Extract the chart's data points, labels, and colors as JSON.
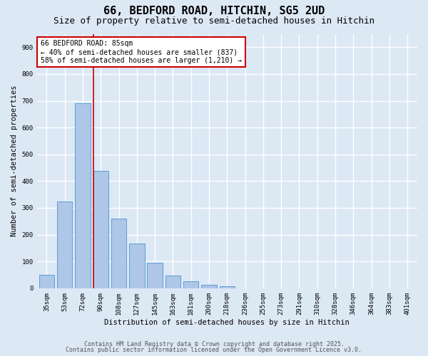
{
  "title1": "66, BEDFORD ROAD, HITCHIN, SG5 2UD",
  "title2": "Size of property relative to semi-detached houses in Hitchin",
  "xlabel": "Distribution of semi-detached houses by size in Hitchin",
  "ylabel": "Number of semi-detached properties",
  "categories": [
    "35sqm",
    "53sqm",
    "72sqm",
    "90sqm",
    "108sqm",
    "127sqm",
    "145sqm",
    "163sqm",
    "181sqm",
    "200sqm",
    "218sqm",
    "236sqm",
    "255sqm",
    "273sqm",
    "291sqm",
    "310sqm",
    "328sqm",
    "346sqm",
    "364sqm",
    "383sqm",
    "401sqm"
  ],
  "values": [
    50,
    323,
    690,
    437,
    260,
    168,
    95,
    47,
    26,
    12,
    8,
    0,
    0,
    0,
    0,
    0,
    0,
    0,
    0,
    0,
    0
  ],
  "bar_color": "#aec6e8",
  "bar_edge_color": "#5a9fd4",
  "background_color": "#dde8f5",
  "grid_color": "#ffffff",
  "vline_color": "#cc0000",
  "annotation_title": "66 BEDFORD ROAD: 85sqm",
  "annotation_line1": "← 40% of semi-detached houses are smaller (837)",
  "annotation_line2": "58% of semi-detached houses are larger (1,210) →",
  "annotation_box_color": "#ffffff",
  "annotation_box_edge_color": "#cc0000",
  "ylim": [
    0,
    950
  ],
  "yticks": [
    0,
    100,
    200,
    300,
    400,
    500,
    600,
    700,
    800,
    900
  ],
  "footnote1": "Contains HM Land Registry data © Crown copyright and database right 2025.",
  "footnote2": "Contains public sector information licensed under the Open Government Licence v3.0.",
  "title_fontsize": 11,
  "subtitle_fontsize": 9,
  "axis_label_fontsize": 7.5,
  "tick_fontsize": 6.5,
  "annotation_fontsize": 7,
  "footnote_fontsize": 6
}
